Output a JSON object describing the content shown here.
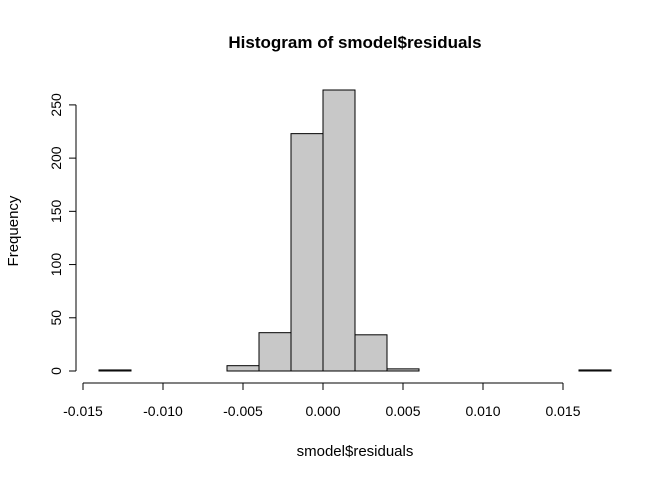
{
  "chart_data": {
    "type": "bar",
    "title": "Histogram of smodel$residuals",
    "xlabel": "smodel$residuals",
    "ylabel": "Frequency",
    "bin_edges": [
      -0.014,
      -0.012,
      -0.01,
      -0.008,
      -0.006,
      -0.004,
      -0.002,
      0.0,
      0.002,
      0.004,
      0.006,
      0.008,
      0.01,
      0.012,
      0.014,
      0.016,
      0.018
    ],
    "counts": [
      1,
      0,
      0,
      0,
      5,
      36,
      223,
      264,
      34,
      2,
      0,
      0,
      0,
      0,
      0,
      1
    ],
    "xlim": [
      -0.014,
      0.018
    ],
    "ylim": [
      0,
      264
    ],
    "x_ticks": [
      -0.015,
      -0.01,
      -0.005,
      0.0,
      0.005,
      0.01,
      0.015
    ],
    "x_tick_labels": [
      "-0.015",
      "-0.010",
      "-0.005",
      "0.000",
      "0.005",
      "0.010",
      "0.015"
    ],
    "y_ticks": [
      0,
      50,
      100,
      150,
      200,
      250
    ],
    "y_tick_labels": [
      "0",
      "50",
      "100",
      "150",
      "200",
      "250"
    ],
    "bar_color": "#c8c8c8",
    "grid": false,
    "legend": "none"
  }
}
